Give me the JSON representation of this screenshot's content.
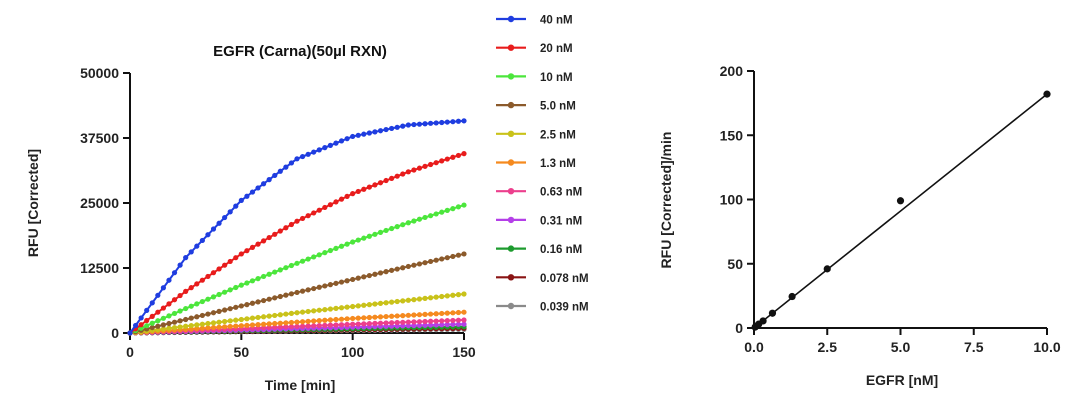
{
  "chart_data": [
    {
      "type": "line",
      "title": "EGFR (Carna)(50µl RXN)",
      "xlabel": "Time [min]",
      "ylabel": "RFU [Corrected]",
      "xlim": [
        0,
        150
      ],
      "ylim": [
        0,
        50000
      ],
      "x_ticks": [
        "0",
        "50",
        "100",
        "150"
      ],
      "y_ticks": [
        "0",
        "12500",
        "25000",
        "37500",
        "50000"
      ],
      "grid": false,
      "legend": "right",
      "x": [
        0,
        25,
        50,
        75,
        100,
        125,
        150
      ],
      "series": [
        {
          "name": "40 nM",
          "color": "#1f3de0",
          "values": [
            0,
            14500,
            25500,
            33500,
            37800,
            40000,
            40800
          ]
        },
        {
          "name": "20 nM",
          "color": "#e81c1c",
          "values": [
            0,
            8000,
            15200,
            21500,
            26800,
            31000,
            34500
          ]
        },
        {
          "name": "10 nM",
          "color": "#4ce63c",
          "values": [
            0,
            4700,
            9200,
            13400,
            17500,
            21200,
            24600
          ]
        },
        {
          "name": "5.0 nM",
          "color": "#8b5a2b",
          "values": [
            0,
            2600,
            5200,
            7800,
            10300,
            12800,
            15200
          ]
        },
        {
          "name": "2.5 nM",
          "color": "#c9c21a",
          "values": [
            0,
            1300,
            2600,
            3900,
            5100,
            6300,
            7500
          ]
        },
        {
          "name": "1.3 nM",
          "color": "#f58a1f",
          "values": [
            0,
            700,
            1400,
            2100,
            2800,
            3400,
            4000
          ]
        },
        {
          "name": "0.63 nM",
          "color": "#ec3f8d",
          "values": [
            0,
            420,
            840,
            1260,
            1680,
            2100,
            2500
          ]
        },
        {
          "name": "0.31 nM",
          "color": "#b43fe8",
          "values": [
            0,
            280,
            560,
            840,
            1120,
            1400,
            1700
          ]
        },
        {
          "name": "0.16 nM",
          "color": "#1d9b2e",
          "values": [
            0,
            200,
            400,
            600,
            800,
            1000,
            1200
          ]
        },
        {
          "name": "0.078 nM",
          "color": "#8a1414",
          "values": [
            0,
            150,
            300,
            450,
            600,
            750,
            900
          ]
        },
        {
          "name": "0.039 nM",
          "color": "#8a8a8a",
          "values": [
            0,
            120,
            240,
            360,
            480,
            600,
            700
          ]
        }
      ]
    },
    {
      "type": "scatter",
      "title": "",
      "xlabel": "EGFR [nM]",
      "ylabel": "RFU [Corrected]/min",
      "xlim": [
        0,
        10
      ],
      "ylim": [
        0,
        200
      ],
      "x_ticks": [
        "0.0",
        "2.5",
        "5.0",
        "7.5",
        "10.0"
      ],
      "y_ticks": [
        "0",
        "50",
        "100",
        "150",
        "200"
      ],
      "grid": false,
      "points": {
        "x": [
          0.039,
          0.078,
          0.16,
          0.31,
          0.63,
          1.3,
          2.5,
          5.0,
          10.0
        ],
        "y": [
          0.7,
          1.5,
          3.0,
          5.5,
          11.5,
          24.5,
          46,
          99,
          182
        ]
      },
      "fit_line": {
        "x": [
          0,
          10
        ],
        "y": [
          0,
          182
        ]
      }
    }
  ]
}
